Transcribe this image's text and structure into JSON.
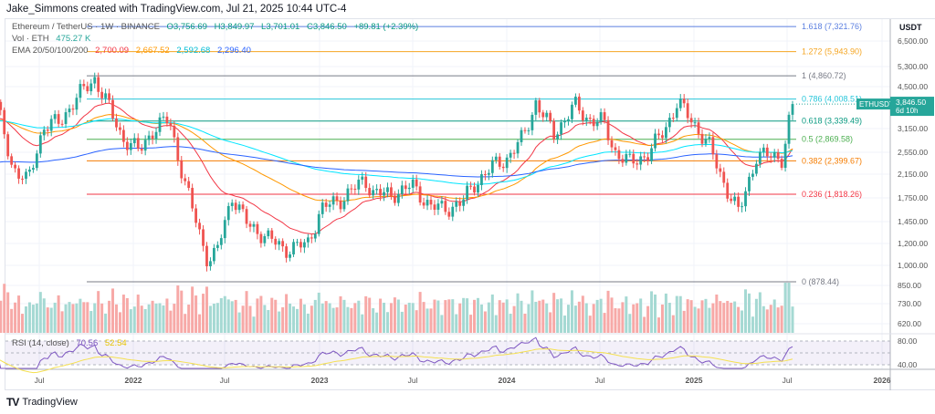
{
  "header": {
    "credit": "Jake_Simmons created with TradingView.com, Jul 21, 2025 10:44 UTC-4"
  },
  "legend": {
    "symbol": "Ethereum / TetherUS · 1W · BINANCE",
    "o": "O3,756.69",
    "h": "H3,849.97",
    "l": "L3,701.01",
    "c": "C3,846.50",
    "chg": "+89.81 (+2.39%)",
    "vol_label": "Vol · ETH",
    "vol_value": "475.27 K",
    "ema_label": "EMA 20/50/100/200",
    "ema_values": [
      "2,700.09",
      "2,667.52",
      "2,592.68",
      "2,296.40"
    ],
    "ema_colors": [
      "#f23645",
      "#ff9800",
      "#00e5ff",
      "#2962ff"
    ]
  },
  "rsi": {
    "label": "RSI (14, close)",
    "value": "70.56",
    "ma_value": "52.54",
    "levels": [
      "80.00",
      "40.00"
    ]
  },
  "price_axis": {
    "unit": "USDT",
    "labels": [
      "6,500.00",
      "5,300.00",
      "4,500.00",
      "3,150.00",
      "2,550.00",
      "2,150.00",
      "1,750.00",
      "1,450.00",
      "1,200.00",
      "1,000.00",
      "850.00",
      "730.00",
      "620.00"
    ]
  },
  "price_tag": {
    "symbol": "ETHUSDT",
    "price": "3,846.50",
    "countdown": "6d 10h",
    "color": "#26a69a"
  },
  "logo": {
    "text": "TradingView"
  },
  "chart_data": {
    "type": "candlestick",
    "title": "Ethereum / TetherUS · 1W · BINANCE",
    "yscale": "log",
    "ylim": [
      560,
      7600
    ],
    "time_ticks": [
      "Jul",
      "2022",
      "Jul",
      "2023",
      "Jul",
      "2024",
      "Jul",
      "2025",
      "Jul",
      "2026"
    ],
    "monthly_close_keypoints": [
      [
        "2021-05-03",
        3800
      ],
      [
        "2021-06-01",
        2300
      ],
      [
        "2021-07-01",
        2000
      ],
      [
        "2021-08-01",
        3200
      ],
      [
        "2021-09-01",
        3300
      ],
      [
        "2021-10-01",
        4000
      ],
      [
        "2021-11-08",
        4750
      ],
      [
        "2021-12-01",
        3900
      ],
      [
        "2022-01-01",
        2900
      ],
      [
        "2022-02-01",
        2600
      ],
      [
        "2022-03-01",
        3100
      ],
      [
        "2022-04-01",
        3400
      ],
      [
        "2022-05-01",
        2000
      ],
      [
        "2022-06-15",
        1050
      ],
      [
        "2022-07-01",
        1100
      ],
      [
        "2022-08-01",
        1800
      ],
      [
        "2022-09-01",
        1400
      ],
      [
        "2022-10-01",
        1300
      ],
      [
        "2022-11-10",
        1150
      ],
      [
        "2022-12-25",
        1200
      ],
      [
        "2023-01-20",
        1600
      ],
      [
        "2023-02-01",
        1650
      ],
      [
        "2023-03-01",
        1750
      ],
      [
        "2023-04-15",
        2050
      ],
      [
        "2023-05-01",
        1850
      ],
      [
        "2023-06-01",
        1800
      ],
      [
        "2023-07-15",
        1950
      ],
      [
        "2023-08-20",
        1650
      ],
      [
        "2023-09-15",
        1600
      ],
      [
        "2023-10-20",
        1700
      ],
      [
        "2023-11-15",
        2000
      ],
      [
        "2023-12-20",
        2300
      ],
      [
        "2024-01-15",
        2450
      ],
      [
        "2024-02-15",
        2900
      ],
      [
        "2024-03-11",
        3900
      ],
      [
        "2024-04-15",
        3000
      ],
      [
        "2024-05-25",
        3800
      ],
      [
        "2024-06-20",
        3400
      ],
      [
        "2024-07-20",
        3300
      ],
      [
        "2024-08-10",
        2600
      ],
      [
        "2024-09-10",
        2350
      ],
      [
        "2024-10-15",
        2550
      ],
      [
        "2024-11-15",
        3100
      ],
      [
        "2024-12-10",
        3900
      ],
      [
        "2025-01-10",
        3300
      ],
      [
        "2025-02-10",
        2700
      ],
      [
        "2025-03-10",
        2000
      ],
      [
        "2025-04-08",
        1550
      ],
      [
        "2025-05-12",
        2500
      ],
      [
        "2025-06-15",
        2500
      ],
      [
        "2025-07-01",
        2450
      ],
      [
        "2025-07-21",
        3846.5
      ]
    ],
    "fib_levels": [
      {
        "ratio": "1.618",
        "value": "7,321.76",
        "price": 7321.76,
        "color": "#5b7fe0"
      },
      {
        "ratio": "1.272",
        "value": "5,943.90",
        "price": 5943.9,
        "color": "#f5a623"
      },
      {
        "ratio": "1",
        "value": "4,860.72",
        "price": 4860.72,
        "color": "#787b86"
      },
      {
        "ratio": "0.786",
        "value": "4,008.51",
        "price": 4008.51,
        "color": "#26c6da"
      },
      {
        "ratio": "0.618",
        "value": "3,339.49",
        "price": 3339.49,
        "color": "#089981"
      },
      {
        "ratio": "0.5",
        "value": "2,869.58",
        "price": 2869.58,
        "color": "#4caf50"
      },
      {
        "ratio": "0.382",
        "value": "2,399.67",
        "price": 2399.67,
        "color": "#f57c00"
      },
      {
        "ratio": "0.236",
        "value": "1,818.26",
        "price": 1818.26,
        "color": "#f23645"
      },
      {
        "ratio": "0",
        "value": "878.44",
        "price": 878.44,
        "color": "#787b86"
      }
    ],
    "up_color": "#26a69a",
    "down_color": "#ef5350"
  }
}
